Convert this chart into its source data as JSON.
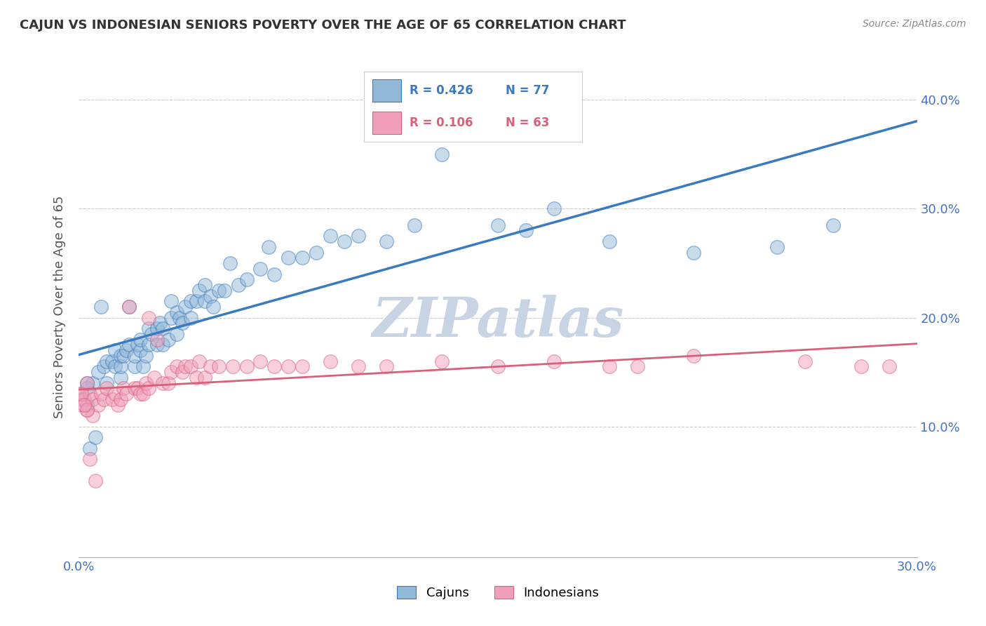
{
  "title": "CAJUN VS INDONESIAN SENIORS POVERTY OVER THE AGE OF 65 CORRELATION CHART",
  "source": "Source: ZipAtlas.com",
  "ylabel_label": "Seniors Poverty Over the Age of 65",
  "cajun_R": 0.426,
  "cajun_N": 77,
  "indonesian_R": 0.106,
  "indonesian_N": 63,
  "xlim": [
    0.0,
    0.3
  ],
  "ylim": [
    -0.02,
    0.44
  ],
  "yticks": [
    0.1,
    0.2,
    0.3,
    0.4
  ],
  "ytick_labels": [
    "10.0%",
    "20.0%",
    "30.0%",
    "40.0%"
  ],
  "cajun_color": "#92b8d8",
  "indonesian_color": "#f0a0bb",
  "cajun_line_color": "#3a7abf",
  "indonesian_line_color": "#d9607a",
  "watermark_color": "#c8d4e3",
  "background_color": "#ffffff",
  "grid_color": "#cccccc",
  "cajun_points_x": [
    0.005,
    0.007,
    0.008,
    0.009,
    0.01,
    0.01,
    0.012,
    0.013,
    0.013,
    0.015,
    0.015,
    0.015,
    0.016,
    0.017,
    0.018,
    0.018,
    0.02,
    0.02,
    0.021,
    0.022,
    0.022,
    0.023,
    0.024,
    0.025,
    0.025,
    0.026,
    0.028,
    0.028,
    0.029,
    0.03,
    0.03,
    0.032,
    0.033,
    0.033,
    0.035,
    0.035,
    0.036,
    0.037,
    0.038,
    0.04,
    0.04,
    0.042,
    0.043,
    0.045,
    0.045,
    0.047,
    0.048,
    0.05,
    0.052,
    0.054,
    0.057,
    0.06,
    0.065,
    0.068,
    0.07,
    0.075,
    0.08,
    0.085,
    0.09,
    0.095,
    0.1,
    0.11,
    0.12,
    0.13,
    0.15,
    0.16,
    0.17,
    0.19,
    0.22,
    0.25,
    0.27,
    0.003,
    0.003,
    0.003,
    0.001,
    0.004,
    0.006
  ],
  "cajun_points_y": [
    0.14,
    0.15,
    0.21,
    0.155,
    0.16,
    0.14,
    0.16,
    0.155,
    0.17,
    0.145,
    0.155,
    0.165,
    0.165,
    0.17,
    0.21,
    0.175,
    0.155,
    0.165,
    0.175,
    0.17,
    0.18,
    0.155,
    0.165,
    0.175,
    0.19,
    0.185,
    0.175,
    0.19,
    0.195,
    0.175,
    0.19,
    0.18,
    0.2,
    0.215,
    0.185,
    0.205,
    0.2,
    0.195,
    0.21,
    0.2,
    0.215,
    0.215,
    0.225,
    0.215,
    0.23,
    0.22,
    0.21,
    0.225,
    0.225,
    0.25,
    0.23,
    0.235,
    0.245,
    0.265,
    0.24,
    0.255,
    0.255,
    0.26,
    0.275,
    0.27,
    0.275,
    0.27,
    0.285,
    0.35,
    0.285,
    0.28,
    0.3,
    0.27,
    0.26,
    0.265,
    0.285,
    0.135,
    0.12,
    0.14,
    0.125,
    0.08,
    0.09
  ],
  "indonesian_points_x": [
    0.0,
    0.001,
    0.002,
    0.003,
    0.004,
    0.005,
    0.005,
    0.007,
    0.008,
    0.009,
    0.01,
    0.012,
    0.013,
    0.014,
    0.015,
    0.016,
    0.017,
    0.018,
    0.02,
    0.021,
    0.022,
    0.023,
    0.024,
    0.025,
    0.025,
    0.027,
    0.028,
    0.03,
    0.032,
    0.033,
    0.035,
    0.037,
    0.038,
    0.04,
    0.042,
    0.043,
    0.045,
    0.047,
    0.05,
    0.055,
    0.06,
    0.065,
    0.07,
    0.075,
    0.08,
    0.09,
    0.1,
    0.11,
    0.13,
    0.15,
    0.17,
    0.19,
    0.2,
    0.22,
    0.26,
    0.28,
    0.29,
    0.003,
    0.003,
    0.001,
    0.002,
    0.004,
    0.006
  ],
  "indonesian_points_y": [
    0.13,
    0.12,
    0.125,
    0.115,
    0.13,
    0.125,
    0.11,
    0.12,
    0.13,
    0.125,
    0.135,
    0.125,
    0.13,
    0.12,
    0.125,
    0.135,
    0.13,
    0.21,
    0.135,
    0.135,
    0.13,
    0.13,
    0.14,
    0.135,
    0.2,
    0.145,
    0.18,
    0.14,
    0.14,
    0.15,
    0.155,
    0.15,
    0.155,
    0.155,
    0.145,
    0.16,
    0.145,
    0.155,
    0.155,
    0.155,
    0.155,
    0.16,
    0.155,
    0.155,
    0.155,
    0.16,
    0.155,
    0.155,
    0.16,
    0.155,
    0.16,
    0.155,
    0.155,
    0.165,
    0.16,
    0.155,
    0.155,
    0.14,
    0.115,
    0.13,
    0.12,
    0.07,
    0.05
  ]
}
